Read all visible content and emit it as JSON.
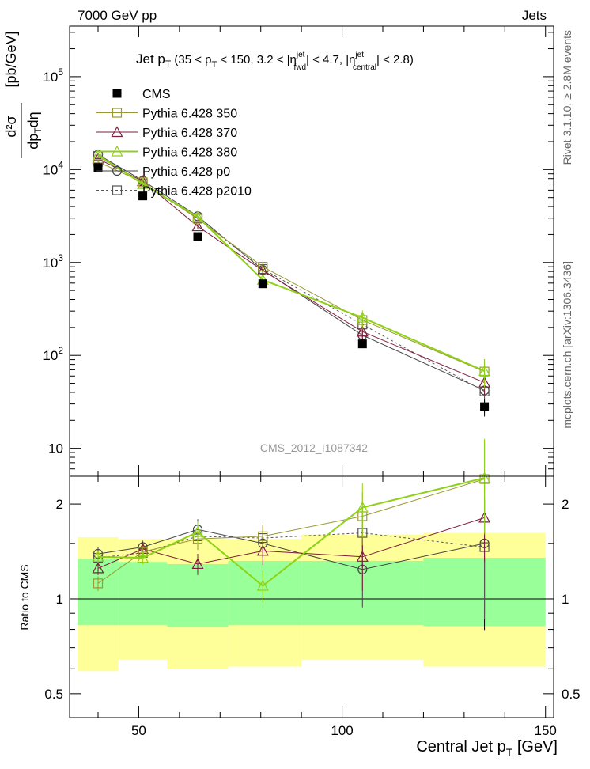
{
  "header": {
    "left": "7000 GeV pp",
    "right": "Jets"
  },
  "side": {
    "top": "Rivet 3.1.10, ≥ 2.8M events",
    "bottom": "mcplots.cern.ch [arXiv:1306.3436]"
  },
  "watermark": "CMS_2012_I1087342",
  "colors": {
    "cms": "#000000",
    "p350": "#999933",
    "p370": "#7f1e3c",
    "p380": "#8fd119",
    "p0": "#444444",
    "p2010": "#555555",
    "band_inner": "#99ff99",
    "band_outer": "#ffff99"
  },
  "chart_data": [
    {
      "type": "line",
      "title": "Jet p_T (35 < p_T < 150, 3.2 < |η^jet_fwd| < 4.7, |η^jet_central| < 2.8)",
      "ylabel": "d²σ / dp_T dη [pb/GeV]",
      "xlabel": "Central Jet p_T [GeV]",
      "yscale": "log",
      "xlim": [
        33,
        152
      ],
      "ylim": [
        5,
        350000
      ],
      "x": [
        40,
        51,
        64.5,
        80.5,
        105,
        135
      ],
      "x_bins": [
        [
          35,
          45
        ],
        [
          45,
          57
        ],
        [
          57,
          72
        ],
        [
          72,
          90
        ],
        [
          90,
          120
        ],
        [
          120,
          150
        ]
      ],
      "legend_position": "top-left",
      "series": [
        {
          "name": "CMS",
          "key": "cms",
          "style": "filled-square",
          "values": [
            10500,
            5200,
            1900,
            590,
            133,
            28
          ],
          "err_high": [
            0,
            0,
            0,
            0,
            0,
            6
          ],
          "err_low": [
            0,
            0,
            0,
            0,
            0,
            6
          ]
        },
        {
          "name": "Pythia 6.428 350",
          "key": "p350",
          "style": "open-square",
          "dash": false,
          "values": [
            12100,
            7300,
            2950,
            900,
            240,
            67
          ],
          "err_high": [
            700,
            400,
            200,
            90,
            50,
            24
          ],
          "err_low": [
            700,
            400,
            200,
            90,
            50,
            24
          ]
        },
        {
          "name": "Pythia 6.428 370",
          "key": "p370",
          "style": "open-triangle",
          "dash": false,
          "values": [
            13100,
            7500,
            2450,
            820,
            180,
            51
          ],
          "err_high": [
            700,
            400,
            150,
            90,
            40,
            14
          ],
          "err_low": [
            700,
            400,
            150,
            90,
            40,
            14
          ]
        },
        {
          "name": "Pythia 6.428 380",
          "key": "p380",
          "style": "open-triangle",
          "dash": false,
          "values": [
            14300,
            7000,
            3100,
            650,
            255,
            68
          ],
          "err_high": [
            700,
            400,
            200,
            80,
            50,
            22
          ],
          "err_low": [
            700,
            400,
            200,
            80,
            50,
            22
          ]
        },
        {
          "name": "Pythia 6.428 p0",
          "key": "p0",
          "style": "open-circle",
          "dash": false,
          "values": [
            14500,
            7600,
            3150,
            830,
            165,
            42
          ],
          "err_high": [
            700,
            400,
            200,
            90,
            35,
            17
          ],
          "err_low": [
            700,
            400,
            200,
            90,
            35,
            17
          ]
        },
        {
          "name": "Pythia 6.428 p2010",
          "key": "p2010",
          "style": "open-square",
          "dash": true,
          "values": [
            14000,
            7000,
            3000,
            850,
            215,
            41
          ],
          "err_high": [
            700,
            400,
            200,
            90,
            45,
            17
          ],
          "err_low": [
            700,
            400,
            200,
            90,
            45,
            17
          ]
        }
      ]
    },
    {
      "type": "line",
      "ylabel": "Ratio to CMS",
      "xlabel": "Central Jet p_T [GeV]",
      "yscale": "log",
      "ylim": [
        0.42,
        2.45
      ],
      "yticks": [
        "0.5",
        "1",
        "2"
      ],
      "xticks": [
        "50",
        "100",
        "150"
      ],
      "band_inner": [
        [
          0.825,
          1.34
        ],
        [
          0.825,
          1.31
        ],
        [
          0.815,
          1.29
        ],
        [
          0.825,
          1.32
        ],
        [
          0.825,
          1.32
        ],
        [
          0.82,
          1.35
        ]
      ],
      "band_outer": [
        [
          0.59,
          1.57
        ],
        [
          0.64,
          1.55
        ],
        [
          0.6,
          1.55
        ],
        [
          0.61,
          1.55
        ],
        [
          0.64,
          1.6
        ],
        [
          0.61,
          1.62
        ]
      ],
      "series": [
        {
          "name": "Pythia 6.428 350",
          "key": "p350",
          "values": [
            1.12,
            1.41,
            1.55,
            1.58,
            1.83,
            2.4
          ],
          "err": [
            0.06,
            0.06,
            0.12,
            0.14,
            0.35,
            0.8
          ]
        },
        {
          "name": "Pythia 6.428 370",
          "key": "p370",
          "values": [
            1.25,
            1.44,
            1.29,
            1.42,
            1.36,
            1.81
          ],
          "err": [
            0.06,
            0.06,
            0.1,
            0.14,
            0.3,
            0.5
          ]
        },
        {
          "name": "Pythia 6.428 380",
          "key": "p380",
          "values": [
            1.36,
            1.35,
            1.63,
            1.1,
            1.95,
            2.42
          ],
          "err": [
            0.06,
            0.06,
            0.13,
            0.13,
            0.38,
            0.8
          ]
        },
        {
          "name": "Pythia 6.428 p0",
          "key": "p0",
          "values": [
            1.39,
            1.46,
            1.66,
            1.5,
            1.24,
            1.5
          ],
          "err": [
            0.07,
            0.07,
            0.13,
            0.15,
            0.3,
            0.6
          ]
        },
        {
          "name": "Pythia 6.428 p2010",
          "key": "p2010",
          "values": [
            1.35,
            1.4,
            1.58,
            1.56,
            1.62,
            1.46
          ],
          "err": [
            0.07,
            0.07,
            0.12,
            0.15,
            0.35,
            0.6
          ]
        }
      ]
    }
  ]
}
